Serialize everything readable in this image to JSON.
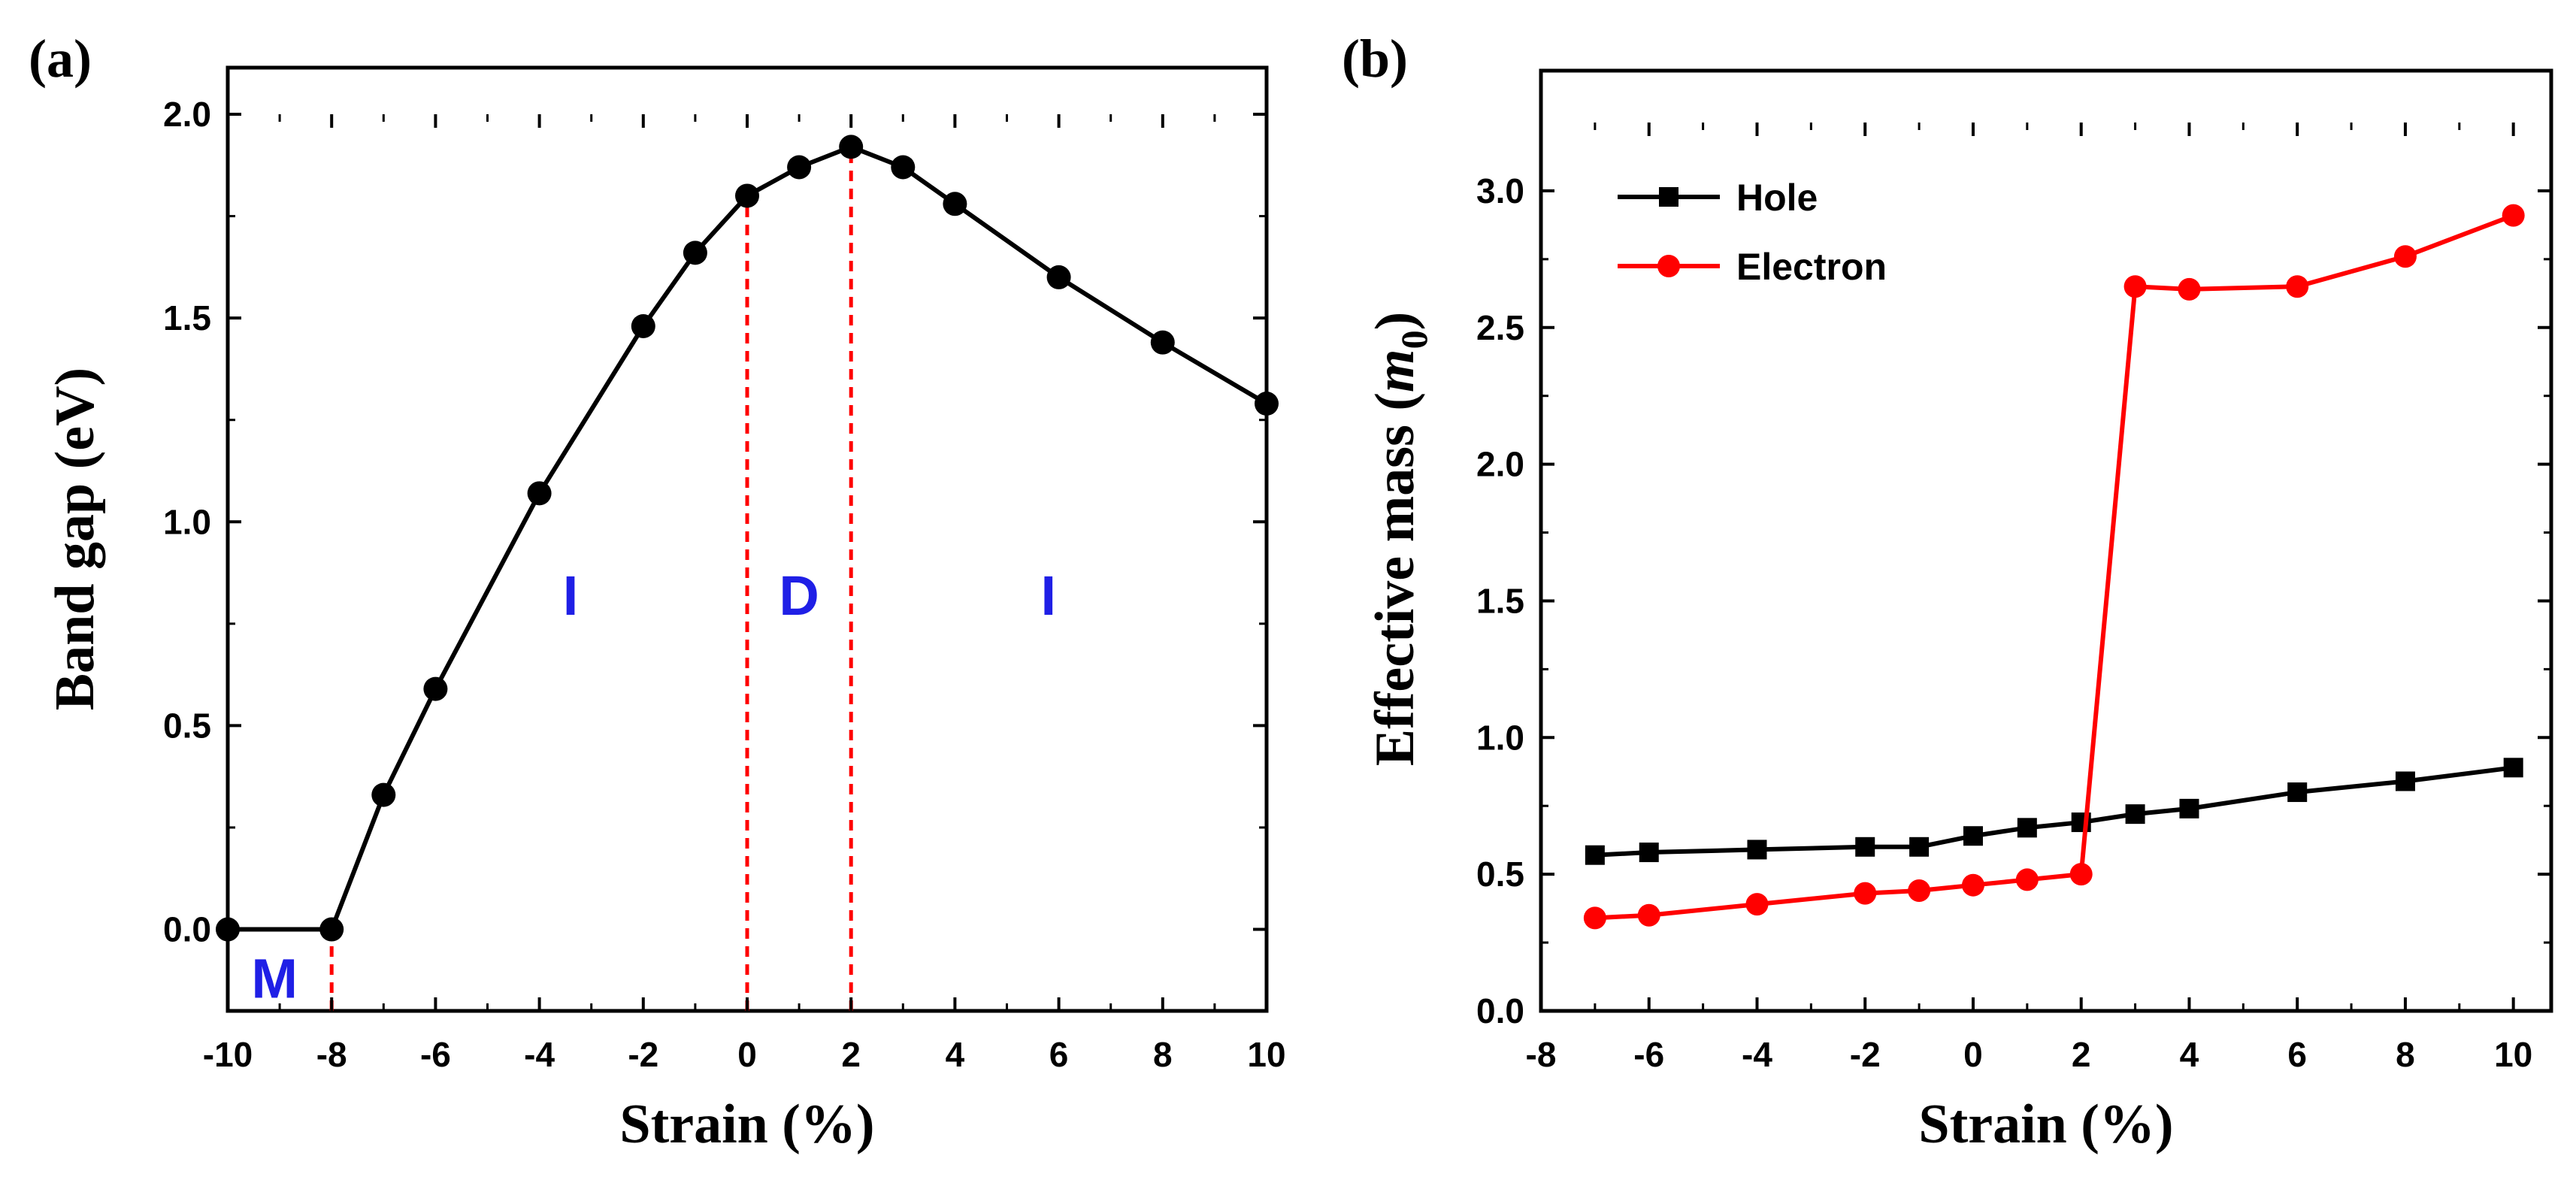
{
  "chart_data": [
    {
      "panel_label": "(a)",
      "type": "line",
      "xlabel": "Strain (%)",
      "ylabel": "Band gap (eV)",
      "xlim": [
        -10,
        10
      ],
      "ylim": [
        -0.2,
        2.0
      ],
      "xticks": [
        -10,
        -8,
        -6,
        -4,
        -2,
        0,
        2,
        4,
        6,
        8,
        10
      ],
      "yticks": [
        0.0,
        0.5,
        1.0,
        1.5,
        2.0
      ],
      "ytick_labels": [
        "0.0",
        "0.5",
        "1.0",
        "1.5",
        "2.0"
      ],
      "series": [
        {
          "color": "#000000",
          "marker": "circle",
          "x": [
            -10,
            -8,
            -7,
            -6,
            -4,
            -2,
            -1,
            0,
            1,
            2,
            3,
            4,
            6,
            8,
            10
          ],
          "values": [
            0.0,
            0.0,
            0.33,
            0.59,
            1.07,
            1.48,
            1.66,
            1.8,
            1.87,
            1.92,
            1.87,
            1.78,
            1.6,
            1.44,
            1.29
          ]
        }
      ],
      "vlines": [
        {
          "x": -8,
          "color": "#ff0000",
          "style": "dashed"
        },
        {
          "x": 0,
          "color": "#ff0000",
          "style": "dashed"
        },
        {
          "x": 2,
          "color": "#ff0000",
          "style": "dashed"
        }
      ],
      "annotations": [
        {
          "text": "M",
          "x": -9.1,
          "y": -0.12,
          "color": "#1f1fe6"
        },
        {
          "text": "I",
          "x": -3.4,
          "y": 0.82,
          "color": "#1f1fe6"
        },
        {
          "text": "D",
          "x": 1.0,
          "y": 0.82,
          "color": "#1f1fe6"
        },
        {
          "text": "I",
          "x": 5.8,
          "y": 0.82,
          "color": "#1f1fe6"
        }
      ],
      "grid": false,
      "legend": null
    },
    {
      "panel_label": "(b)",
      "type": "line",
      "xlabel": "Strain (%)",
      "ylabel": "Effective mass (",
      "ylabel_italic": "m",
      "ylabel_sub": "0",
      "ylabel_end": ")",
      "xlim": [
        -8,
        10.7
      ],
      "ylim": [
        0.0,
        3.25
      ],
      "xticks": [
        -8,
        -6,
        -4,
        -2,
        0,
        2,
        4,
        6,
        8,
        10
      ],
      "yticks": [
        0.0,
        0.5,
        1.0,
        1.5,
        2.0,
        2.5,
        3.0
      ],
      "ytick_labels": [
        "0.0",
        "0.5",
        "1.0",
        "1.5",
        "2.0",
        "2.5",
        "3.0"
      ],
      "series": [
        {
          "name": "Hole",
          "color": "#000000",
          "marker": "square",
          "x": [
            -7,
            -6,
            -4,
            -2,
            -1,
            0,
            1,
            2,
            3,
            4,
            6,
            8,
            10
          ],
          "values": [
            0.57,
            0.58,
            0.59,
            0.6,
            0.6,
            0.64,
            0.67,
            0.69,
            0.72,
            0.74,
            0.8,
            0.84,
            0.89
          ]
        },
        {
          "name": "Electron",
          "color": "#ff0000",
          "marker": "circle",
          "x": [
            -7,
            -6,
            -4,
            -2,
            -1,
            0,
            1,
            2,
            3,
            4,
            6,
            8,
            10
          ],
          "values": [
            0.34,
            0.35,
            0.39,
            0.43,
            0.44,
            0.46,
            0.48,
            0.5,
            2.65,
            2.64,
            2.65,
            2.76,
            2.91
          ]
        }
      ],
      "grid": false,
      "legend": "top-left"
    }
  ]
}
